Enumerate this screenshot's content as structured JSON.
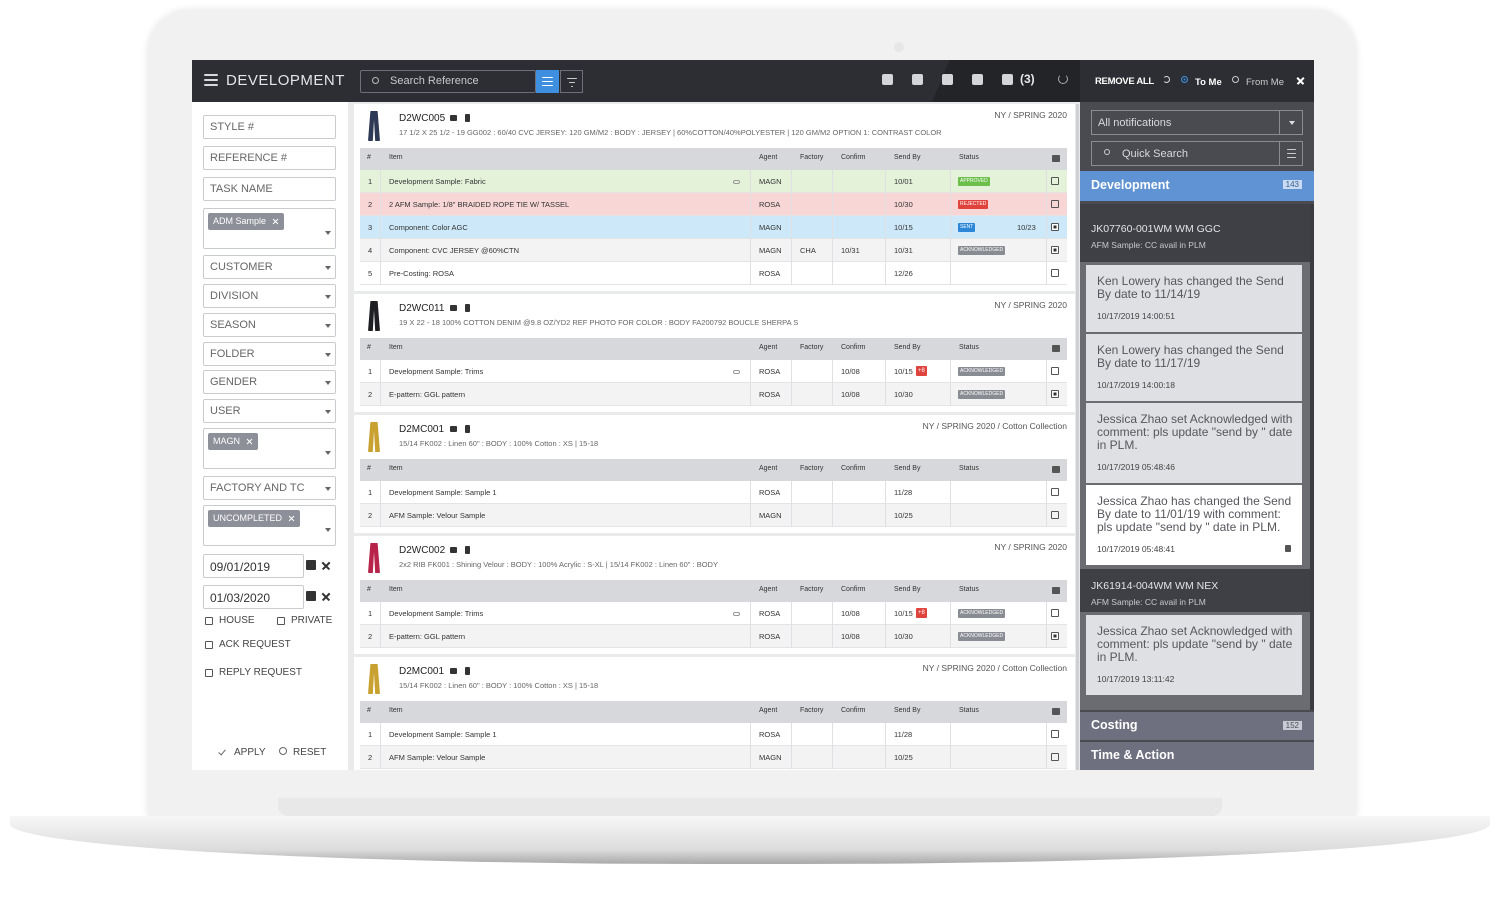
{
  "header": {
    "title": "DEVELOPMENT",
    "search_placeholder": "Search Reference",
    "badge": "(3)"
  },
  "filters": {
    "style": "STYLE #",
    "reference": "REFERENCE #",
    "task": "TASK NAME",
    "tag_sample": "ADM Sample",
    "dropdowns": [
      "CUSTOMER",
      "DIVISION",
      "SEASON",
      "FOLDER",
      "GENDER",
      "USER"
    ],
    "tag_user": "MAGN",
    "factory": "FACTORY AND TC",
    "tag_status": "UNCOMPLETED",
    "date_from": "09/01/2019",
    "date_to": "01/03/2020",
    "checkboxes": [
      "HOUSE",
      "PRIVATE",
      "ACK REQUEST",
      "REPLY REQUEST"
    ],
    "apply": "APPLY",
    "reset": "RESET"
  },
  "table": {
    "columns": [
      "#",
      "Item",
      "Agent",
      "Factory",
      "Confirm",
      "Send By",
      "Status"
    ],
    "cards": [
      {
        "code": "D2WC005",
        "thumb_color": "#2e3a55",
        "season": "NY / SPRING 2020",
        "description": "17 1/2 X 25 1/2 - 19 GG002 : 60/40 CVC JERSEY: 120 GM/M2 : BODY : JERSEY | 60%COTTON/40%POLYESTER | 120 GM/M2 OPTION 1: CONTRAST COLOR",
        "rows": [
          {
            "n": 1,
            "item": "Development Sample: Fabric",
            "agent": "MAGN",
            "send_by": "10/01",
            "status": "APPROVED",
            "status_color": "#6cbf4a",
            "row_color": "#e4f2da"
          },
          {
            "n": 2,
            "item": "2 AFM Sample: 1/8\" BRAIDED ROPE TIE W/ TASSEL",
            "agent": "ROSA",
            "send_by": "10/30",
            "status": "REJECTED",
            "status_color": "#e0423c",
            "row_color": "#f8d6d6"
          },
          {
            "n": 3,
            "item": "Component: Color AGC",
            "agent": "MAGN",
            "send_by": "10/15",
            "status": "SENT",
            "status_color": "#2b86d6",
            "sent_date": "10/23",
            "row_color": "#cde8f8",
            "checked": true
          },
          {
            "n": 4,
            "item": "Component: CVC JERSEY @60%CTN",
            "agent": "MAGN",
            "factory": "CHA",
            "confirm": "10/31",
            "send_by": "10/31",
            "status": "ACKNOWLEDGED",
            "status_color": "#8a8c94",
            "checked": true
          },
          {
            "n": 5,
            "item": "Pre-Costing: ROSA",
            "agent": "ROSA",
            "send_by": "12/26"
          }
        ]
      },
      {
        "code": "D2WC011",
        "thumb_color": "#1e1f22",
        "season": "NY / SPRING 2020",
        "description": "19 X 22 - 18 100% COTTON DENIM @9.8 OZ/YD2 REF PHOTO FOR COLOR : BODY FA200792 BOUCLE SHERPA S",
        "rows": [
          {
            "n": 1,
            "item": "Development Sample: Trims",
            "agent": "ROSA",
            "confirm": "10/08",
            "send_by": "10/15",
            "delta": "+8",
            "status": "ACKNOWLEDGED",
            "status_color": "#8a8c94"
          },
          {
            "n": 2,
            "item": "E-pattern: GGL pattern",
            "agent": "ROSA",
            "confirm": "10/08",
            "send_by": "10/30",
            "status": "ACKNOWLEDGED",
            "status_color": "#8a8c94",
            "checked": true
          }
        ]
      },
      {
        "code": "D2MC001",
        "thumb_color": "#c9a130",
        "season": "NY / SPRING 2020 / Cotton Collection",
        "description": "15/14 FK002 : Linen 60\" : BODY : 100% Cotton : XS | 15-18",
        "rows": [
          {
            "n": 1,
            "item": "Development Sample: Sample 1",
            "agent": "ROSA",
            "send_by": "11/28"
          },
          {
            "n": 2,
            "item": "AFM Sample: Velour Sample",
            "agent": "MAGN",
            "send_by": "10/25"
          }
        ]
      },
      {
        "code": "D2WC002",
        "thumb_color": "#b8234a",
        "season": "NY / SPRING 2020",
        "description": "2x2 RIB FK001 : Shining Velour : BODY : 100% Acrylic : S-XL | 15/14 FK002 : Linen 60\" : BODY",
        "rows": [
          {
            "n": 1,
            "item": "Development Sample: Trims",
            "agent": "ROSA",
            "confirm": "10/08",
            "send_by": "10/15",
            "delta": "+8",
            "status": "ACKNOWLEDGED",
            "status_color": "#8a8c94"
          },
          {
            "n": 2,
            "item": "E-pattern: GGL pattern",
            "agent": "ROSA",
            "confirm": "10/08",
            "send_by": "10/30",
            "status": "ACKNOWLEDGED",
            "status_color": "#8a8c94",
            "checked": true
          }
        ]
      },
      {
        "code": "D2MC001",
        "thumb_color": "#c9a130",
        "season": "NY / SPRING 2020 / Cotton Collection",
        "description": "15/14 FK002 : Linen 60\" : BODY : 100% Cotton : XS | 15-18",
        "rows": [
          {
            "n": 1,
            "item": "Development Sample: Sample 1",
            "agent": "ROSA",
            "send_by": "11/28"
          },
          {
            "n": 2,
            "item": "AFM Sample: Velour Sample",
            "agent": "MAGN",
            "send_by": "10/25"
          }
        ]
      }
    ]
  },
  "notifications": {
    "remove_all": "REMOVE ALL",
    "to_me": "To Me",
    "from_me": "From Me",
    "filter": "All notifications",
    "search": "Quick Search",
    "section": {
      "title": "Development",
      "count": "143"
    },
    "groups": [
      {
        "title": "JK07760-001WM WM GGC",
        "subtitle": "AFM Sample: CC avail in PLM",
        "items": [
          {
            "text": "Ken Lowery has changed the Send By date to 11/14/19",
            "time": "10/17/2019 14:00:51"
          },
          {
            "text": "Ken Lowery has changed the Send By date to 11/17/19",
            "time": "10/17/2019 14:00:18"
          },
          {
            "text": "Jessica Zhao set Acknowledged with comment: pls update \"send by \" date in PLM.",
            "time": "10/17/2019 05:48:46"
          },
          {
            "text": "Jessica Zhao has changed the Send By date to 11/01/19 with comment: pls update \"send by \" date in PLM.",
            "time": "10/17/2019 05:48:41",
            "selected": true
          }
        ]
      },
      {
        "title": "JK61914-004WM WM NEX",
        "subtitle": "AFM Sample: CC avail in PLM",
        "items": [
          {
            "text": "Jessica Zhao set Acknowledged with comment: pls update \"send by \" date in PLM.",
            "time": "10/17/2019 13:11:42"
          }
        ]
      }
    ],
    "costing": {
      "title": "Costing",
      "count": "152"
    },
    "time_action": "Time & Action"
  }
}
